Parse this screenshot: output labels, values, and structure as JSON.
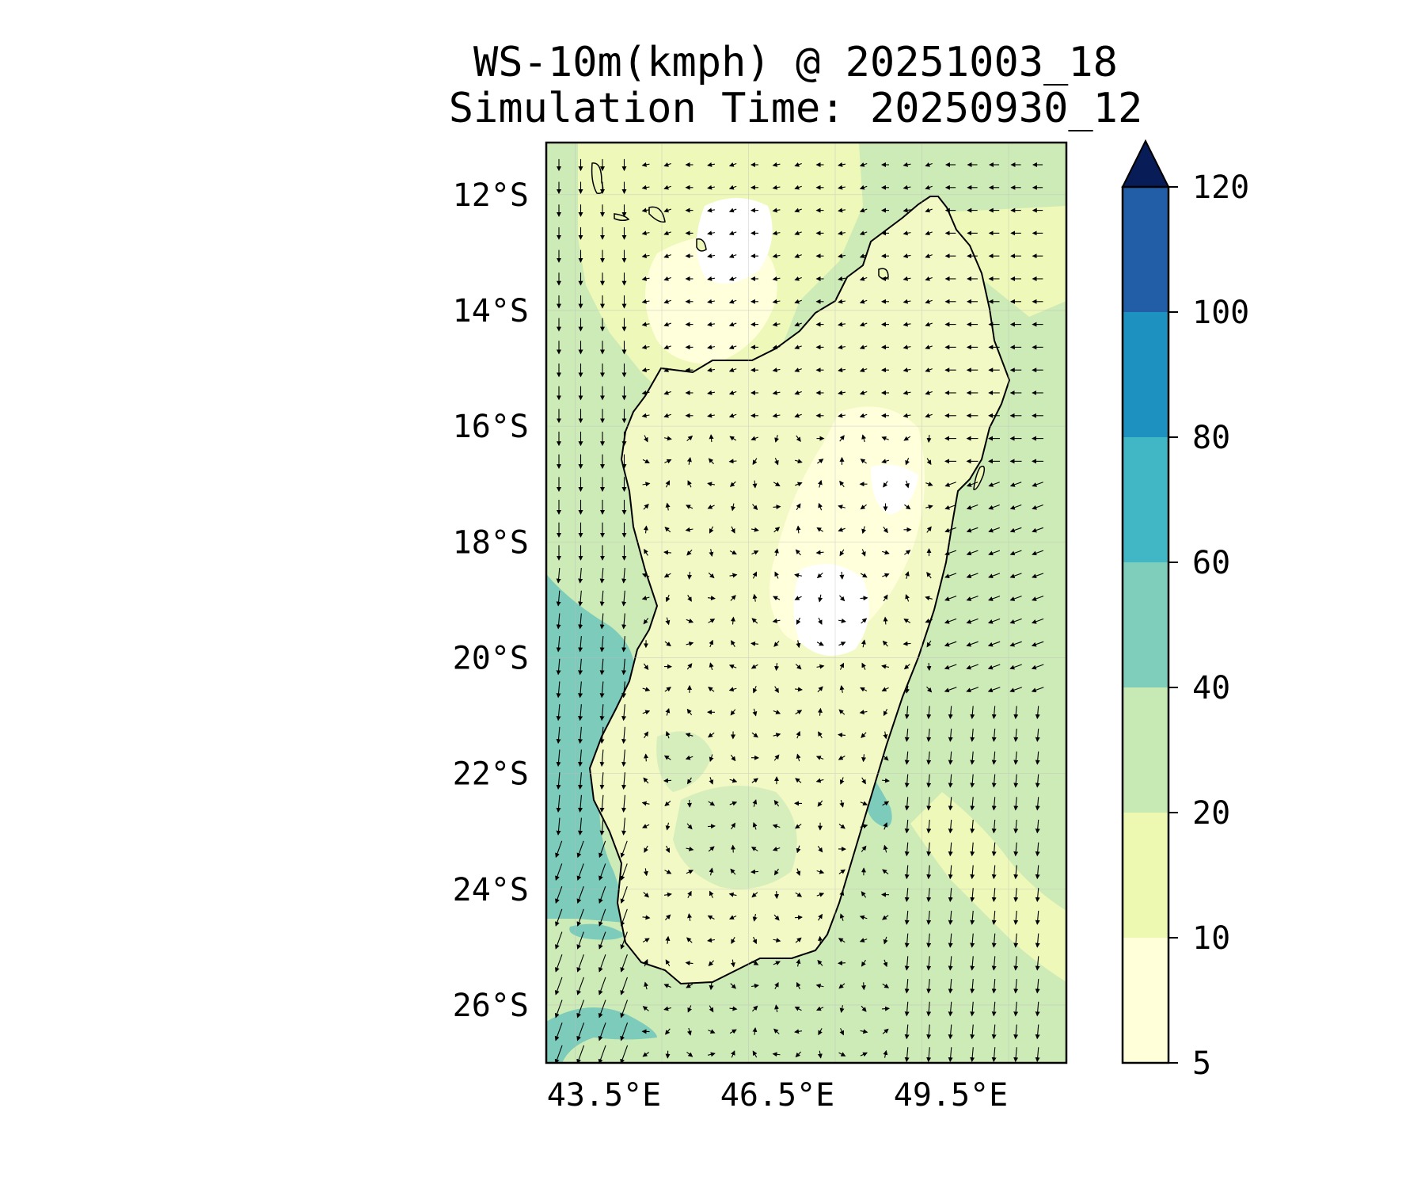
{
  "title": {
    "line1": "WS-10m(kmph) @ 20251003_18",
    "line2": "Simulation Time: 20250930_12"
  },
  "map": {
    "region": "Madagascar",
    "variable": "10 m wind speed with wind direction arrows",
    "lon_range": [
      42.5,
      51.5
    ],
    "lat_range": [
      -27,
      -11.1
    ],
    "lon_ticks": [
      {
        "value": 43.5,
        "label": "43.5°E"
      },
      {
        "value": 46.5,
        "label": "46.5°E"
      },
      {
        "value": 49.5,
        "label": "49.5°E"
      }
    ],
    "lat_ticks": [
      {
        "value": -12,
        "label": "12°S"
      },
      {
        "value": -14,
        "label": "14°S"
      },
      {
        "value": -16,
        "label": "16°S"
      },
      {
        "value": -18,
        "label": "18°S"
      },
      {
        "value": -20,
        "label": "20°S"
      },
      {
        "value": -22,
        "label": "22°S"
      },
      {
        "value": -24,
        "label": "24°S"
      },
      {
        "value": -26,
        "label": "26°S"
      }
    ],
    "gridlines": true
  },
  "colorbar": {
    "levels": [
      "5",
      "10",
      "20",
      "40",
      "60",
      "80",
      "100",
      "120"
    ],
    "colors": [
      "#ffffd9",
      "#edf8b1",
      "#c7e9b4",
      "#7fcdbb",
      "#41b6c4",
      "#1d91c0",
      "#225ea8",
      "#0c2c84"
    ],
    "extend_color": "#081d58",
    "extend": "max"
  }
}
